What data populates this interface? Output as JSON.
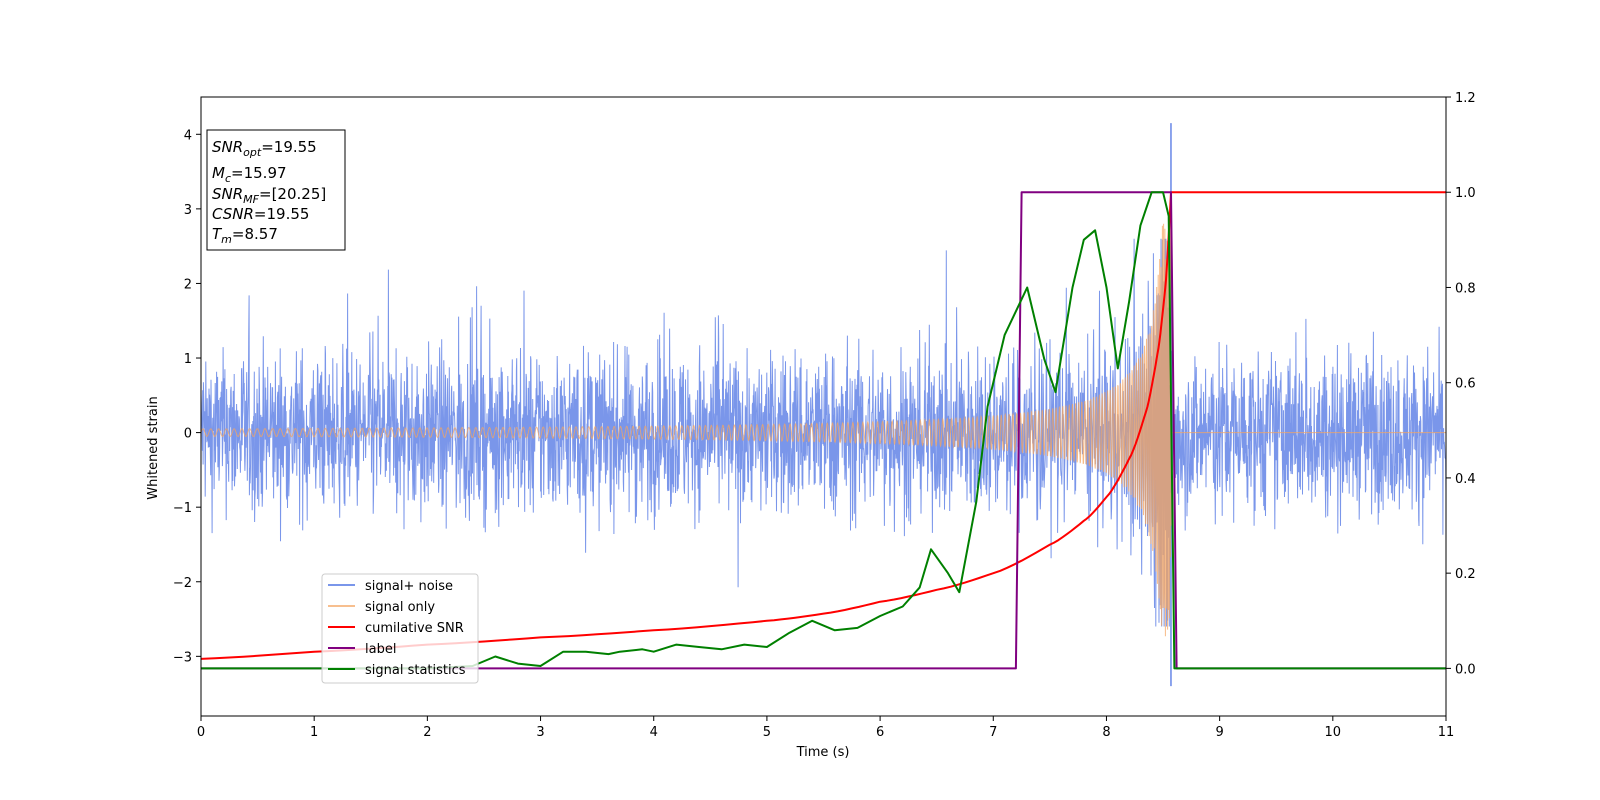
{
  "chart_data": {
    "type": "line",
    "xlabel": "Time (s)",
    "ylabel_left": "Whitened strain",
    "ylabel_right": "",
    "xlim": [
      0,
      11
    ],
    "ylim_left": [
      -3.8,
      4.5
    ],
    "ylim_right": [
      -0.1,
      1.2
    ],
    "x_ticks": [
      "0",
      "1",
      "2",
      "3",
      "4",
      "5",
      "6",
      "7",
      "8",
      "9",
      "10",
      "11"
    ],
    "y_ticks_left": [
      "−3",
      "−2",
      "−1",
      "0",
      "1",
      "2",
      "3",
      "4"
    ],
    "y_ticks_right": [
      "0.0",
      "0.2",
      "0.4",
      "0.6",
      "0.8",
      "1.0",
      "1.2"
    ],
    "legend_position": "lower-left",
    "info_box": {
      "snr_opt": {
        "label": "SNR",
        "sub": "opt",
        "value": "=19.55"
      },
      "mc": {
        "label": "M",
        "sub": "c",
        "value": "=15.97"
      },
      "snr_mf": {
        "label": "SNR",
        "sub": "MF",
        "value": "=[20.25]"
      },
      "csnr": {
        "label": "CSNR",
        "sub": "",
        "value": "=19.55"
      },
      "tm": {
        "label": "T",
        "sub": "m",
        "value": "=8.57"
      }
    },
    "series": [
      {
        "name": "signal+ noise",
        "color": "#4169e1",
        "axis": "left",
        "description": "noisy whitened strain, roughly ±1.5 amplitude with spikes",
        "noise_range": [
          -2.6,
          2.6
        ],
        "max_spike": {
          "x": 8.57,
          "y": 4.15
        },
        "min_spike": {
          "x": 8.57,
          "y": -3.4
        }
      },
      {
        "name": "signal only",
        "color": "#f4a460",
        "axis": "left",
        "chirp": {
          "start_t": 0,
          "merge_t": 8.57,
          "start_amp": 0.05,
          "merge_amp": 2.8
        }
      },
      {
        "name": "cumilative SNR",
        "color": "#ff0000",
        "axis": "right",
        "points": [
          [
            0,
            0.02
          ],
          [
            1,
            0.035
          ],
          [
            2,
            0.05
          ],
          [
            3,
            0.065
          ],
          [
            4,
            0.08
          ],
          [
            5,
            0.1
          ],
          [
            5.5,
            0.115
          ],
          [
            6,
            0.14
          ],
          [
            6.5,
            0.165
          ],
          [
            7,
            0.2
          ],
          [
            7.5,
            0.26
          ],
          [
            7.8,
            0.31
          ],
          [
            8.0,
            0.36
          ],
          [
            8.2,
            0.44
          ],
          [
            8.35,
            0.54
          ],
          [
            8.45,
            0.66
          ],
          [
            8.52,
            0.8
          ],
          [
            8.57,
            1.0
          ],
          [
            11,
            1.0
          ]
        ]
      },
      {
        "name": "label",
        "color": "#800080",
        "axis": "right",
        "points": [
          [
            0,
            0.0
          ],
          [
            7.2,
            0.0
          ],
          [
            7.25,
            1.0
          ],
          [
            8.57,
            1.0
          ],
          [
            8.62,
            0.0
          ],
          [
            11,
            0.0
          ]
        ]
      },
      {
        "name": "signal statistics",
        "color": "#008000",
        "axis": "right",
        "points": [
          [
            0,
            0.0
          ],
          [
            0.5,
            0.0
          ],
          [
            1,
            0.0
          ],
          [
            1.5,
            0.0
          ],
          [
            2,
            0.0
          ],
          [
            2.4,
            0.005
          ],
          [
            2.6,
            0.025
          ],
          [
            2.8,
            0.01
          ],
          [
            3.0,
            0.005
          ],
          [
            3.2,
            0.035
          ],
          [
            3.4,
            0.035
          ],
          [
            3.6,
            0.03
          ],
          [
            3.7,
            0.035
          ],
          [
            3.9,
            0.04
          ],
          [
            4.0,
            0.035
          ],
          [
            4.2,
            0.05
          ],
          [
            4.4,
            0.045
          ],
          [
            4.6,
            0.04
          ],
          [
            4.8,
            0.05
          ],
          [
            5.0,
            0.045
          ],
          [
            5.2,
            0.075
          ],
          [
            5.4,
            0.1
          ],
          [
            5.6,
            0.08
          ],
          [
            5.8,
            0.085
          ],
          [
            6.0,
            0.11
          ],
          [
            6.2,
            0.13
          ],
          [
            6.35,
            0.17
          ],
          [
            6.45,
            0.25
          ],
          [
            6.6,
            0.2
          ],
          [
            6.7,
            0.16
          ],
          [
            6.85,
            0.35
          ],
          [
            6.95,
            0.55
          ],
          [
            7.1,
            0.7
          ],
          [
            7.2,
            0.75
          ],
          [
            7.3,
            0.8
          ],
          [
            7.45,
            0.65
          ],
          [
            7.55,
            0.58
          ],
          [
            7.7,
            0.8
          ],
          [
            7.8,
            0.9
          ],
          [
            7.9,
            0.92
          ],
          [
            8.0,
            0.8
          ],
          [
            8.1,
            0.63
          ],
          [
            8.2,
            0.77
          ],
          [
            8.3,
            0.93
          ],
          [
            8.4,
            1.0
          ],
          [
            8.5,
            1.0
          ],
          [
            8.55,
            0.95
          ],
          [
            8.6,
            0.0
          ],
          [
            11,
            0.0
          ]
        ]
      }
    ]
  }
}
